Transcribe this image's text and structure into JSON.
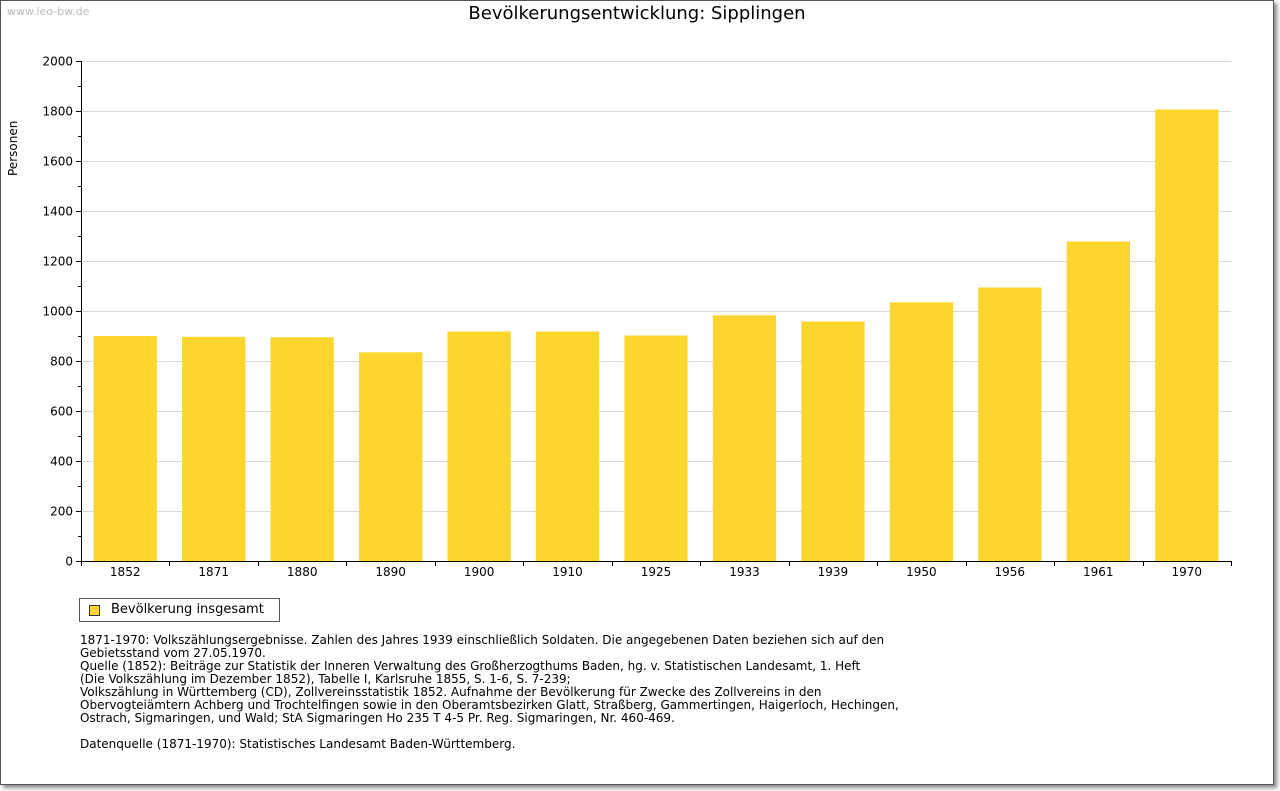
{
  "watermark": "www.leo-bw.de",
  "chart_data": {
    "type": "bar",
    "title": "Bevölkerungsentwicklung: Sipplingen",
    "xlabel": "",
    "ylabel": "Personen",
    "ylim": [
      0,
      2000
    ],
    "yticks": [
      0,
      200,
      400,
      600,
      800,
      1000,
      1200,
      1400,
      1600,
      1800,
      2000
    ],
    "grid": true,
    "legend_position": "bottom-left",
    "categories": [
      "1852",
      "1871",
      "1880",
      "1890",
      "1900",
      "1910",
      "1925",
      "1933",
      "1939",
      "1950",
      "1956",
      "1961",
      "1970"
    ],
    "series": [
      {
        "name": "Bevölkerung insgesamt",
        "color": "#fcd62e",
        "values": [
          900,
          897,
          895,
          835,
          918,
          918,
          902,
          983,
          958,
          1035,
          1094,
          1278,
          1806
        ]
      }
    ]
  },
  "notes": {
    "lines": [
      "1871-1970: Volkszählungsergebnisse. Zahlen des Jahres 1939 einschließlich Soldaten. Die angegebenen Daten beziehen sich auf den",
      "Gebietsstand vom 27.05.1970.",
      "Quelle (1852): Beiträge zur Statistik der Inneren Verwaltung des Großherzogthums Baden, hg. v. Statistischen Landesamt, 1. Heft",
      "(Die Volkszählung im Dezember 1852), Tabelle I, Karlsruhe 1855, S. 1-6, S. 7-239;",
      "Volkszählung in Württemberg (CD), Zollvereinsstatistik 1852. Aufnahme der Bevölkerung für Zwecke des Zollvereins in den",
      "Obervogteiämtern Achberg und Trochtelfingen sowie in den Oberamtsbezirken Glatt, Straßberg, Gammertingen, Haigerloch, Hechingen,",
      "Ostrach, Sigmaringen, und Wald; StA Sigmaringen Ho 235 T 4-5 Pr. Reg. Sigmaringen, Nr. 460-469."
    ],
    "source": "Datenquelle (1871-1970): Statistisches Landesamt Baden-Württemberg."
  }
}
